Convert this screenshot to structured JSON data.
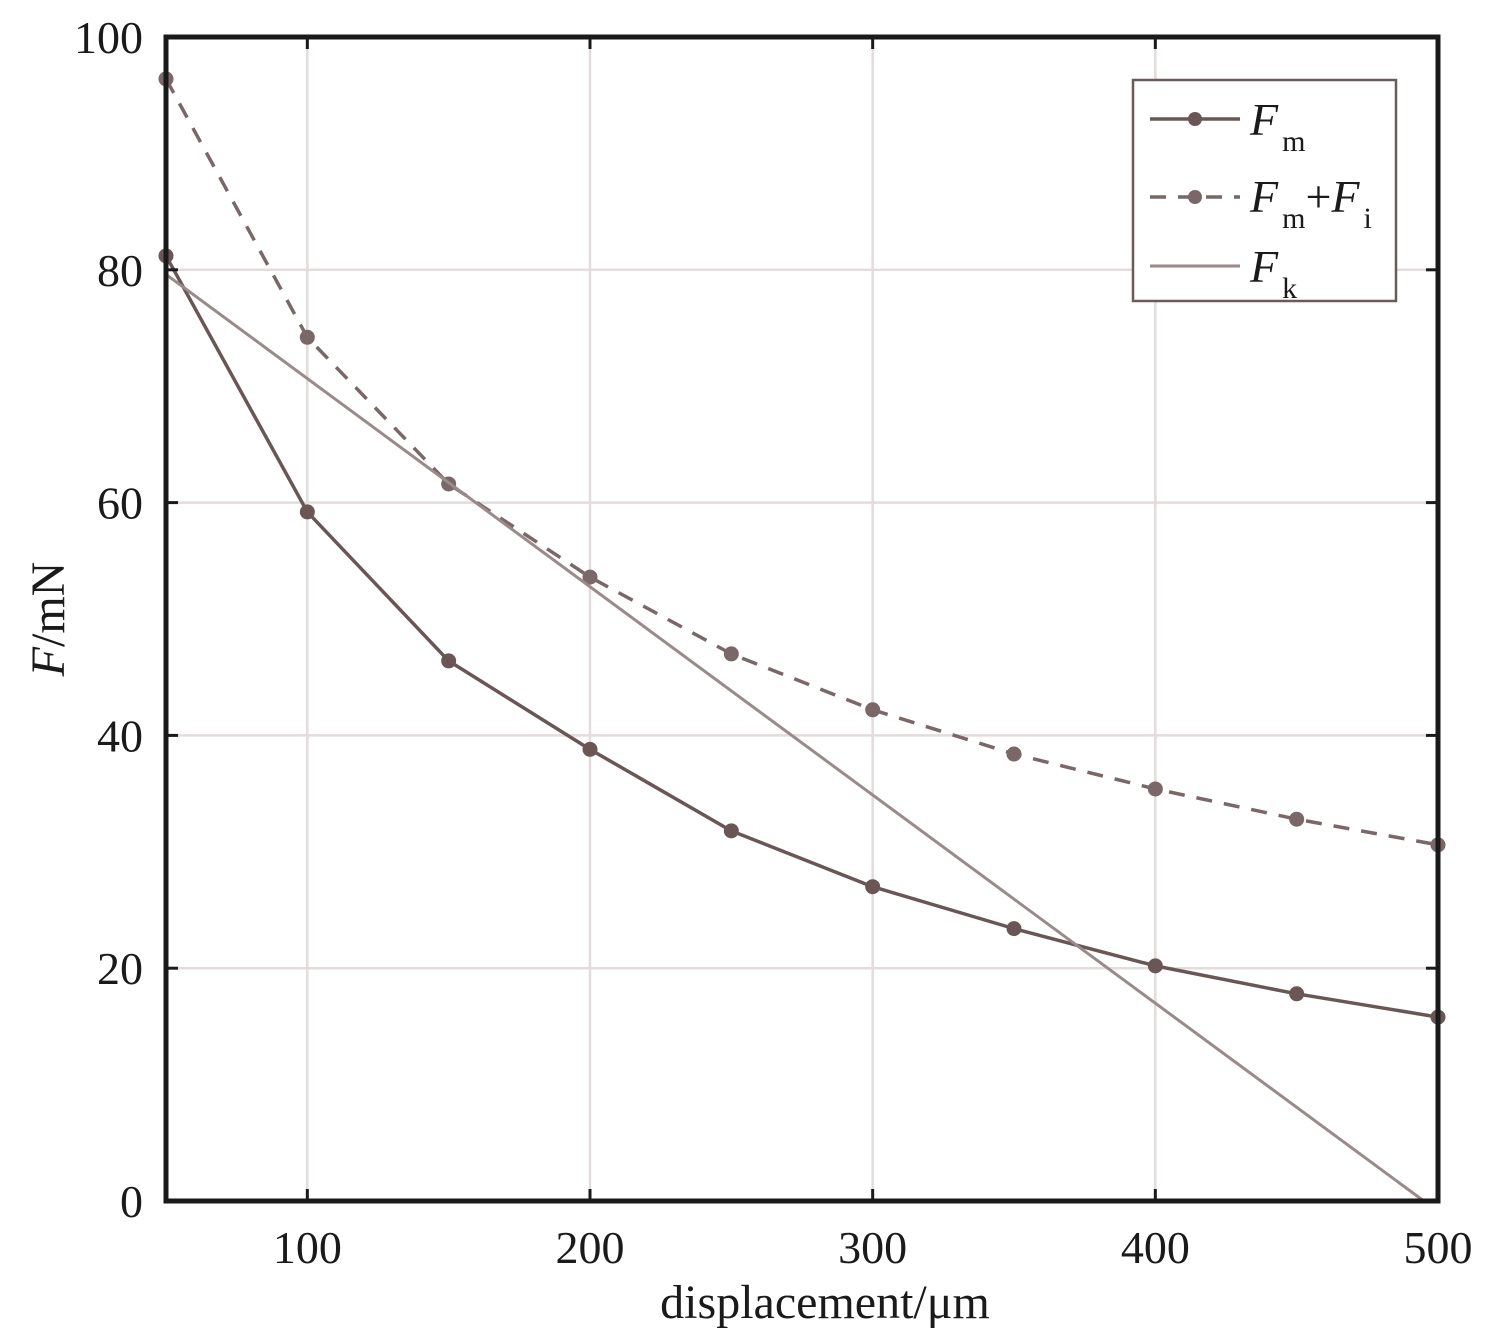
{
  "chart_data": {
    "type": "line",
    "xlabel": {
      "italic": "",
      "rest": "displacement/μm"
    },
    "ylabel": {
      "italic": "F",
      "rest": "/mN"
    },
    "xlim": [
      50,
      500
    ],
    "ylim": [
      0,
      100
    ],
    "xticks": [
      100,
      200,
      300,
      400,
      500
    ],
    "yticks": [
      0,
      20,
      40,
      60,
      80,
      100
    ],
    "grid": true,
    "legend_position": "top-right",
    "series": [
      {
        "key": "Fm",
        "name": {
          "base": "F",
          "sub1": "m",
          "plus": "",
          "base2": "",
          "sub2": ""
        },
        "style": "solid-markers",
        "color": "#6b5656",
        "x": [
          50,
          100,
          150,
          200,
          250,
          300,
          350,
          400,
          450,
          500
        ],
        "y": [
          81.2,
          59.2,
          46.4,
          38.8,
          31.8,
          27.0,
          23.4,
          20.2,
          17.8,
          15.8
        ]
      },
      {
        "key": "FmFi",
        "name": {
          "base": "F",
          "sub1": "m",
          "plus": "+",
          "base2": "F",
          "sub2": "i"
        },
        "style": "dashed-markers",
        "color": "#7a6767",
        "x": [
          50,
          100,
          150,
          200,
          250,
          300,
          350,
          400,
          450,
          500
        ],
        "y": [
          96.4,
          74.2,
          61.6,
          53.6,
          47.0,
          42.2,
          38.4,
          35.4,
          32.8,
          30.6
        ]
      },
      {
        "key": "Fk",
        "name": {
          "base": "F",
          "sub1": "k",
          "plus": "",
          "base2": "",
          "sub2": ""
        },
        "style": "solid-line",
        "color": "#9a8a8a",
        "x": [
          50,
          495
        ],
        "y": [
          79.6,
          0
        ]
      }
    ]
  }
}
